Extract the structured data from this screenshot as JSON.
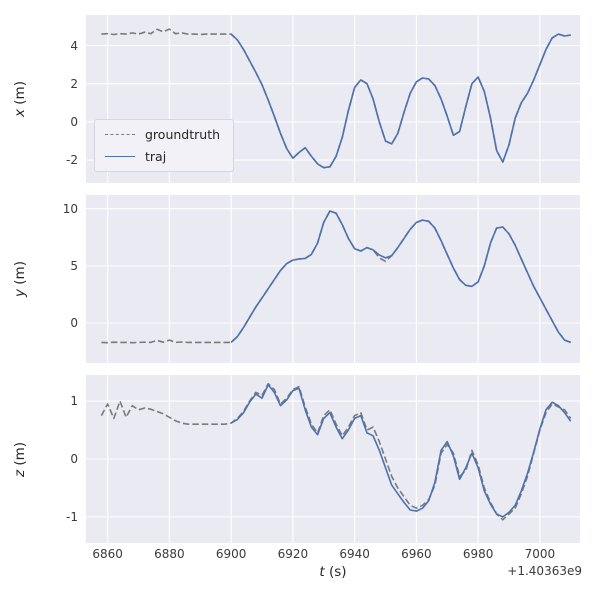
{
  "colors": {
    "axes_background": "#eaeaf2",
    "grid": "#ffffff",
    "text": "#262626",
    "groundtruth_gray": "#7a7a7a",
    "traj_blue": "#4c72b0"
  },
  "chart_data": {
    "type": "line",
    "title": "",
    "xlabel": "t (s)",
    "xlabel_var": "t",
    "xlabel_unit": " (s)",
    "x_offset_text": "+1.40363e9",
    "xlim": [
      6853,
      7013
    ],
    "xticks": [
      6860,
      6880,
      6900,
      6920,
      6940,
      6960,
      6980,
      7000
    ],
    "grid": "on",
    "series_names": [
      "groundtruth",
      "traj"
    ],
    "legend": {
      "position": "lower-left of first subplot",
      "entries": [
        "groundtruth",
        "traj"
      ]
    },
    "subplots": [
      {
        "ylabel": "x (m)",
        "ylabel_var": "x",
        "ylabel_unit": " (m)",
        "ylim": [
          -3.2,
          5.6
        ],
        "yticks": [
          -2,
          0,
          2,
          4
        ],
        "series": [
          {
            "name": "groundtruth",
            "dashed": true,
            "color": "#7a7a7a",
            "t_start": 6858,
            "t_step": 2,
            "values": [
              4.6,
              4.62,
              4.58,
              4.62,
              4.6,
              4.66,
              4.6,
              4.7,
              4.62,
              4.85,
              4.72,
              4.86,
              4.62,
              4.66,
              4.6,
              4.6,
              4.58,
              4.6,
              4.6,
              4.6,
              4.6,
              4.6,
              4.3,
              3.8,
              3.2,
              2.6,
              1.95,
              1.15,
              0.3,
              -0.6,
              -1.4,
              -1.9,
              -1.6,
              -1.35,
              -1.8,
              -2.2,
              -2.4,
              -2.35,
              -1.8,
              -0.8,
              0.6,
              1.8,
              2.2,
              2.0,
              1.2,
              0.0,
              -1.0,
              -1.15,
              -0.6,
              0.5,
              1.5,
              2.1,
              2.3,
              2.25,
              1.9,
              1.2,
              0.3,
              -0.7,
              -0.5,
              0.8,
              2.0,
              2.35,
              1.6,
              0.2,
              -1.5,
              -2.1,
              -1.2,
              0.2,
              1.0,
              1.5,
              2.2,
              3.0,
              3.8,
              4.4,
              4.6,
              4.5,
              4.55
            ]
          },
          {
            "name": "traj",
            "dashed": false,
            "color": "#4c72b0",
            "t_start": 6900,
            "t_step": 2,
            "values": [
              4.6,
              4.3,
              3.8,
              3.2,
              2.6,
              1.95,
              1.15,
              0.3,
              -0.6,
              -1.4,
              -1.9,
              -1.6,
              -1.35,
              -1.8,
              -2.2,
              -2.4,
              -2.35,
              -1.8,
              -0.8,
              0.6,
              1.8,
              2.2,
              2.0,
              1.2,
              0.0,
              -1.0,
              -1.15,
              -0.6,
              0.5,
              1.5,
              2.1,
              2.3,
              2.25,
              1.9,
              1.2,
              0.3,
              -0.7,
              -0.5,
              0.8,
              2.0,
              2.35,
              1.6,
              0.2,
              -1.5,
              -2.1,
              -1.2,
              0.2,
              1.0,
              1.5,
              2.2,
              3.0,
              3.8,
              4.4,
              4.6,
              4.5,
              4.55
            ]
          }
        ]
      },
      {
        "ylabel": "y (m)",
        "ylabel_var": "y",
        "ylabel_unit": " (m)",
        "ylim": [
          -3.5,
          11.2
        ],
        "yticks": [
          0,
          5,
          10
        ],
        "series": [
          {
            "name": "groundtruth",
            "dashed": true,
            "color": "#7a7a7a",
            "t_start": 6858,
            "t_step": 2,
            "values": [
              -1.7,
              -1.72,
              -1.68,
              -1.7,
              -1.7,
              -1.72,
              -1.7,
              -1.68,
              -1.7,
              -1.52,
              -1.68,
              -1.5,
              -1.7,
              -1.66,
              -1.7,
              -1.7,
              -1.7,
              -1.7,
              -1.7,
              -1.7,
              -1.7,
              -1.7,
              -1.2,
              -0.4,
              0.5,
              1.4,
              2.2,
              3.0,
              3.8,
              4.6,
              5.2,
              5.5,
              5.6,
              5.65,
              6.0,
              7.0,
              8.8,
              9.8,
              9.6,
              8.6,
              7.4,
              6.5,
              6.3,
              6.6,
              6.4,
              5.7,
              5.4,
              5.9,
              6.6,
              7.4,
              8.2,
              8.8,
              9.0,
              8.9,
              8.3,
              7.2,
              6.0,
              4.8,
              3.8,
              3.3,
              3.2,
              3.6,
              5.0,
              7.0,
              8.3,
              8.4,
              7.8,
              6.8,
              5.6,
              4.4,
              3.2,
              2.2,
              1.2,
              0.2,
              -0.8,
              -1.5,
              -1.7
            ]
          },
          {
            "name": "traj",
            "dashed": false,
            "color": "#4c72b0",
            "t_start": 6900,
            "t_step": 2,
            "values": [
              -1.7,
              -1.2,
              -0.4,
              0.5,
              1.4,
              2.2,
              3.0,
              3.8,
              4.6,
              5.2,
              5.5,
              5.6,
              5.65,
              6.0,
              7.0,
              8.8,
              9.8,
              9.6,
              8.6,
              7.4,
              6.5,
              6.3,
              6.6,
              6.4,
              5.95,
              5.7,
              5.9,
              6.6,
              7.4,
              8.2,
              8.8,
              9.0,
              8.9,
              8.3,
              7.2,
              6.0,
              4.8,
              3.8,
              3.3,
              3.2,
              3.6,
              5.0,
              7.0,
              8.3,
              8.4,
              7.8,
              6.8,
              5.6,
              4.4,
              3.2,
              2.2,
              1.2,
              0.2,
              -0.8,
              -1.5,
              -1.7
            ]
          }
        ]
      },
      {
        "ylabel": "z (m)",
        "ylabel_var": "z",
        "ylabel_unit": " (m)",
        "ylim": [
          -1.45,
          1.45
        ],
        "yticks": [
          -1,
          0,
          1
        ],
        "series": [
          {
            "name": "groundtruth",
            "dashed": true,
            "color": "#7a7a7a",
            "t_start": 6858,
            "t_step": 2,
            "values": [
              0.75,
              0.95,
              0.7,
              1.0,
              0.72,
              0.92,
              0.85,
              0.88,
              0.86,
              0.82,
              0.78,
              0.72,
              0.66,
              0.62,
              0.6,
              0.6,
              0.6,
              0.6,
              0.6,
              0.6,
              0.6,
              0.62,
              0.7,
              0.82,
              1.0,
              1.15,
              1.1,
              1.3,
              1.2,
              0.95,
              1.05,
              1.2,
              1.25,
              0.9,
              0.6,
              0.45,
              0.75,
              0.85,
              0.6,
              0.4,
              0.55,
              0.75,
              0.8,
              0.5,
              0.55,
              0.3,
              0.0,
              -0.3,
              -0.5,
              -0.65,
              -0.8,
              -0.85,
              -0.8,
              -0.7,
              -0.45,
              0.1,
              0.25,
              0.1,
              -0.3,
              -0.2,
              0.15,
              -0.1,
              -0.5,
              -0.75,
              -0.95,
              -1.05,
              -0.95,
              -0.85,
              -0.6,
              -0.3,
              0.1,
              0.5,
              0.8,
              0.95,
              0.9,
              0.85,
              0.7
            ]
          },
          {
            "name": "traj",
            "dashed": false,
            "color": "#4c72b0",
            "t_start": 6900,
            "t_step": 2,
            "values": [
              0.62,
              0.68,
              0.8,
              0.98,
              1.12,
              1.05,
              1.28,
              1.15,
              0.92,
              1.02,
              1.18,
              1.22,
              0.85,
              0.55,
              0.42,
              0.7,
              0.8,
              0.55,
              0.35,
              0.5,
              0.7,
              0.75,
              0.45,
              0.4,
              0.15,
              -0.15,
              -0.45,
              -0.6,
              -0.75,
              -0.88,
              -0.9,
              -0.85,
              -0.72,
              -0.4,
              0.15,
              0.3,
              0.05,
              -0.35,
              -0.15,
              0.1,
              -0.15,
              -0.55,
              -0.78,
              -0.95,
              -1.0,
              -0.92,
              -0.8,
              -0.55,
              -0.25,
              0.12,
              0.52,
              0.85,
              0.98,
              0.92,
              0.8,
              0.65
            ]
          }
        ]
      }
    ]
  }
}
